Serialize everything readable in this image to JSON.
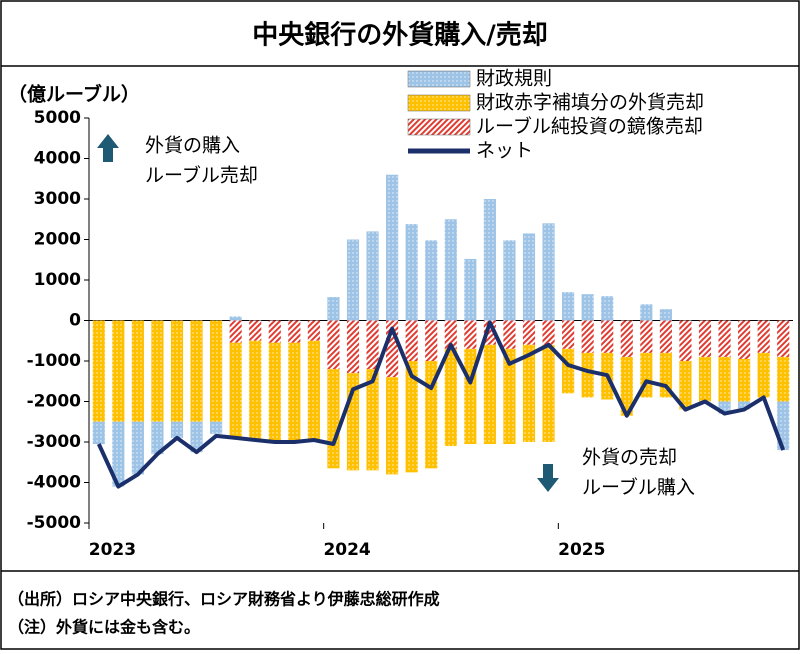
{
  "chart_data": {
    "type": "bar",
    "title": "中央銀行の外貨購入/売却",
    "y_label": "（億ルーブル）",
    "source_note": "（出所）ロシア中央銀行、ロシア財務省より伊藤忠総研作成",
    "note": "（注）外貨には金も含む。",
    "annotations": [
      {
        "lines": [
          "外貨の購入",
          "ルーブル売却"
        ]
      },
      {
        "lines": [
          "外貨の売却",
          "ルーブル購入"
        ]
      }
    ],
    "categories": [
      "2023",
      null,
      null,
      null,
      null,
      null,
      null,
      null,
      null,
      null,
      null,
      null,
      "2024",
      null,
      null,
      null,
      null,
      null,
      null,
      null,
      null,
      null,
      null,
      null,
      "2025",
      null,
      null,
      null,
      null,
      null,
      null,
      null,
      null,
      null,
      null,
      null
    ],
    "series": [
      {
        "name": "財政規則",
        "type": "bar",
        "color": "#9dc3e6",
        "pattern": "dots",
        "values": [
          -550,
          -1600,
          -1300,
          -800,
          -400,
          -750,
          -300,
          100,
          0,
          0,
          0,
          0,
          580,
          2000,
          2200,
          3600,
          2380,
          1980,
          2500,
          1520,
          3000,
          1980,
          2150,
          2400,
          700,
          650,
          600,
          0,
          400,
          280,
          0,
          0,
          -300,
          -200,
          0,
          -1200
        ]
      },
      {
        "name": "財政赤字補填分の外貨売却",
        "type": "bar",
        "color": "#ffc000",
        "pattern": "dots",
        "values": [
          -2500,
          -2500,
          -2500,
          -2500,
          -2500,
          -2500,
          -2500,
          -2350,
          -2450,
          -2450,
          -2450,
          -2450,
          -2450,
          -2400,
          -2500,
          -2400,
          -2750,
          -2650,
          -2400,
          -2350,
          -2450,
          -2350,
          -2400,
          -2400,
          -1100,
          -1100,
          -1150,
          -1450,
          -1100,
          -1100,
          -1200,
          -1100,
          -1100,
          -1050,
          -1100,
          -1100
        ]
      },
      {
        "name": "ルーブル純投資の鏡像売却",
        "type": "bar",
        "color": "#e03c31",
        "pattern": "stripes",
        "values": [
          0,
          0,
          0,
          0,
          0,
          0,
          0,
          -550,
          -500,
          -550,
          -550,
          -500,
          -1200,
          -1300,
          -1200,
          -1400,
          -1000,
          -1000,
          -700,
          -700,
          -600,
          -700,
          -600,
          -600,
          -700,
          -800,
          -800,
          -900,
          -800,
          -800,
          -1000,
          -900,
          -900,
          -950,
          -800,
          -900
        ]
      },
      {
        "name": "ネット",
        "type": "line",
        "color": "#1b2f6b",
        "values": [
          -3050,
          -4100,
          -3800,
          -3300,
          -2900,
          -3250,
          -2850,
          -2900,
          -2950,
          -3000,
          -3000,
          -2950,
          -3050,
          -1700,
          -1500,
          -200,
          -1370,
          -1670,
          -600,
          -1530,
          -50,
          -1070,
          -850,
          -600,
          -1100,
          -1250,
          -1350,
          -2350,
          -1500,
          -1620,
          -2200,
          -2000,
          -2300,
          -2200,
          -1900,
          -3200
        ]
      }
    ],
    "ylim": [
      -5000,
      5000
    ],
    "yticks": [
      -5000,
      -4000,
      -3000,
      -2000,
      -1000,
      0,
      1000,
      2000,
      3000,
      4000,
      5000
    ],
    "legend": "upper right"
  }
}
